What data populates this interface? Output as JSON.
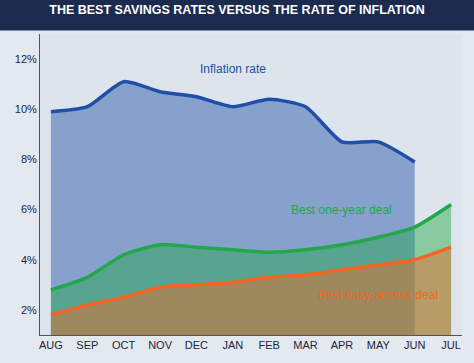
{
  "chart_data": {
    "type": "area",
    "title": "THE BEST SAVINGS RATES VERSUS THE RATE OF INFLATION",
    "categories": [
      "AUG",
      "SEP",
      "OCT",
      "NOV",
      "DEC",
      "JAN",
      "FEB",
      "MAR",
      "APR",
      "MAY",
      "JUN",
      "JUL"
    ],
    "series": [
      {
        "name": "Inflation rate",
        "color": "#1f4fa8",
        "values": [
          9.9,
          10.1,
          11.1,
          10.7,
          10.5,
          10.1,
          10.4,
          10.1,
          8.7,
          8.7,
          7.9,
          null
        ]
      },
      {
        "name": "Best one-year deal",
        "color": "#22a84a",
        "values": [
          2.8,
          3.3,
          4.2,
          4.6,
          4.5,
          4.4,
          4.3,
          4.4,
          4.6,
          4.9,
          5.3,
          6.2
        ]
      },
      {
        "name": "Best easy-access deal",
        "color": "#f26522",
        "values": [
          1.8,
          2.2,
          2.5,
          2.9,
          3.0,
          3.1,
          3.3,
          3.4,
          3.6,
          3.8,
          4.0,
          4.5
        ]
      }
    ],
    "annotations": [
      {
        "text": "Inflation rate",
        "x": "JAN",
        "y": 11.6,
        "color": "#1f4fa8"
      },
      {
        "text": "Best one-year deal",
        "x": "APR",
        "y": 6.0,
        "color": "#22a84a"
      },
      {
        "text": "Best easy-access deal",
        "x": "MAY",
        "y": 2.6,
        "color": "#f26522"
      }
    ],
    "ylim": [
      1,
      13
    ],
    "yticks": [
      {
        "value": 2,
        "label": "2%"
      },
      {
        "value": 4,
        "label": "4%"
      },
      {
        "value": 6,
        "label": "6%"
      },
      {
        "value": 8,
        "label": "8%"
      },
      {
        "value": 10,
        "label": "10%"
      },
      {
        "value": 12,
        "label": "12%"
      }
    ],
    "grid": false
  }
}
